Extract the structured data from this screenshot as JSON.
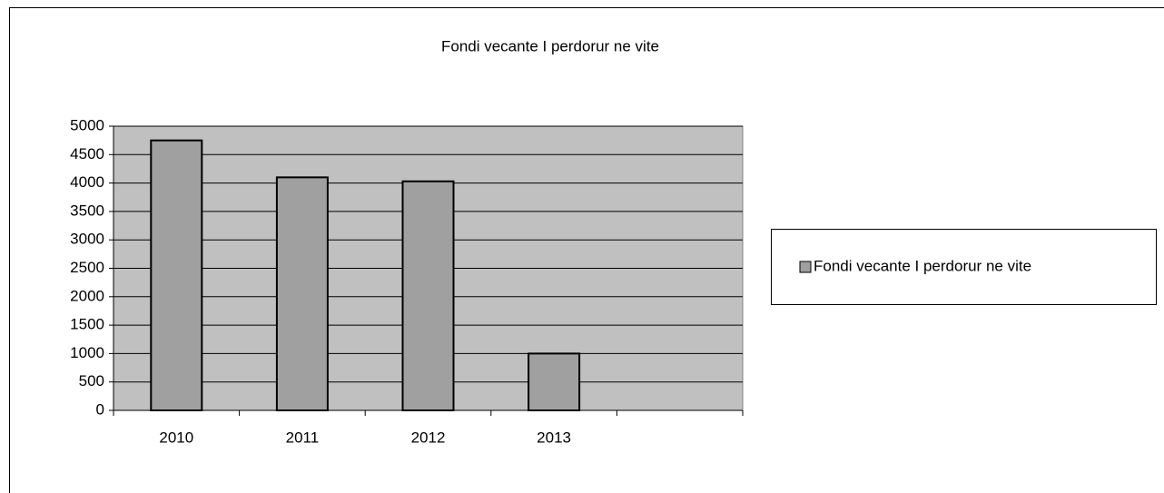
{
  "chart_data": {
    "type": "bar",
    "title": "Fondi vecante I perdorur ne vite",
    "categories": [
      "2010",
      "2011",
      "2012",
      "2013",
      null
    ],
    "series": [
      {
        "name": "Fondi vecante I perdorur ne vite",
        "color": "#a0a0a0",
        "values": [
          4750,
          4100,
          4030,
          1000,
          null
        ]
      }
    ],
    "ylim": [
      0,
      5000
    ],
    "yticks": [
      0,
      500,
      1000,
      1500,
      2000,
      2500,
      3000,
      3500,
      4000,
      4500,
      5000
    ],
    "grid": true,
    "plot_background": "#c0c0c0",
    "legend": "right"
  }
}
